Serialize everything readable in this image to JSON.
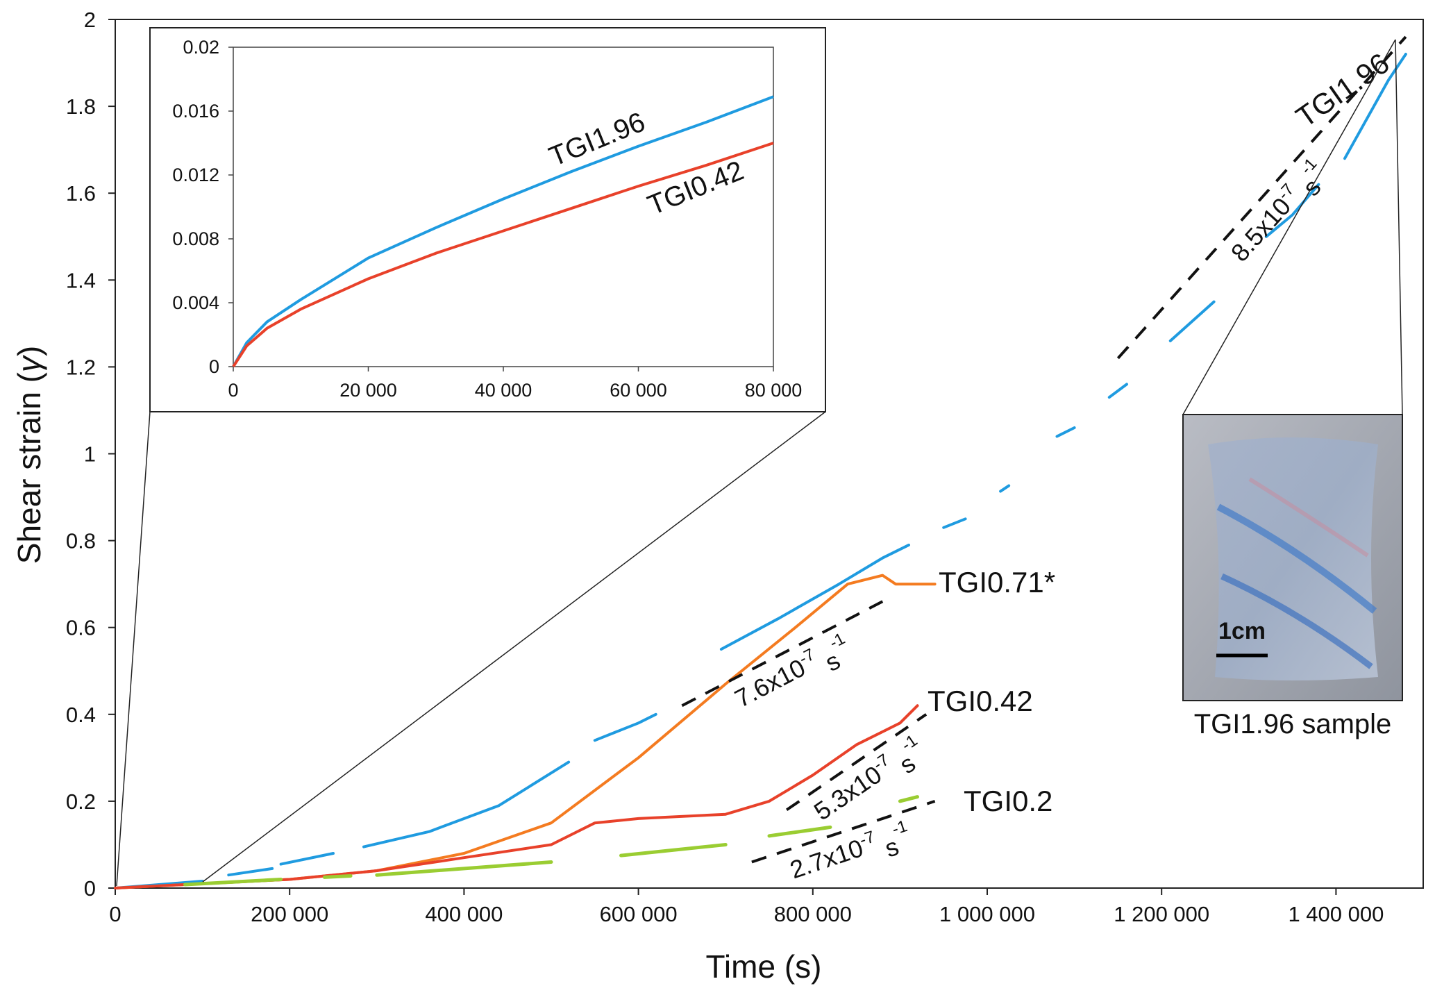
{
  "chart_data": [
    {
      "type": "line",
      "xlabel": "Time (s)",
      "ylabel_text": "Shear strain (",
      "ylabel_symbol": "γ",
      "ylabel_close": ")",
      "xlim": [
        0,
        1500000
      ],
      "ylim": [
        0,
        2
      ],
      "xticks": [
        0,
        200000,
        400000,
        600000,
        800000,
        1000000,
        1200000,
        1400000
      ],
      "xtick_labels": [
        "0",
        "200 000",
        "400 000",
        "600 000",
        "800 000",
        "1 000 000",
        "1 200 000",
        "1 400 000"
      ],
      "yticks": [
        0,
        0.2,
        0.4,
        0.6,
        0.8,
        1,
        1.2,
        1.4,
        1.6,
        1.8,
        2
      ],
      "ytick_labels": [
        "0",
        "0.2",
        "0.4",
        "0.6",
        "0.8",
        "1",
        "1.2",
        "1.4",
        "1.6",
        "1.8",
        "2"
      ],
      "grid": false,
      "series": [
        {
          "name": "TGI1.96",
          "color": "#1f9be0",
          "segments": [
            [
              [
                0,
                0
              ],
              [
                50000,
                0.008
              ],
              [
                100000,
                0.016
              ]
            ],
            [
              [
                130000,
                0.03
              ],
              [
                180000,
                0.045
              ]
            ],
            [
              [
                190000,
                0.055
              ],
              [
                250000,
                0.08
              ]
            ],
            [
              [
                285000,
                0.095
              ],
              [
                360000,
                0.13
              ],
              [
                440000,
                0.19
              ],
              [
                520000,
                0.29
              ]
            ],
            [
              [
                550000,
                0.34
              ],
              [
                600000,
                0.38
              ],
              [
                620000,
                0.4
              ]
            ],
            [
              [
                695000,
                0.55
              ],
              [
                760000,
                0.62
              ],
              [
                830000,
                0.7
              ],
              [
                880000,
                0.76
              ],
              [
                910000,
                0.79
              ]
            ],
            [
              [
                950000,
                0.83
              ],
              [
                975000,
                0.85
              ]
            ],
            [
              [
                1020000,
                0.92
              ]
            ],
            [
              [
                1080000,
                1.04
              ],
              [
                1100000,
                1.06
              ]
            ],
            [
              [
                1140000,
                1.13
              ],
              [
                1160000,
                1.16
              ]
            ],
            [
              [
                1210000,
                1.26
              ],
              [
                1260000,
                1.35
              ]
            ],
            [
              [
                1320000,
                1.5
              ],
              [
                1350000,
                1.55
              ],
              [
                1380000,
                1.62
              ]
            ],
            [
              [
                1410000,
                1.68
              ],
              [
                1460000,
                1.86
              ],
              [
                1480000,
                1.92
              ]
            ]
          ]
        },
        {
          "name": "TGI0.71*",
          "color": "#f47b20",
          "segments": [
            [
              [
                0,
                0
              ],
              [
                100000,
                0.01
              ],
              [
                200000,
                0.02
              ],
              [
                300000,
                0.04
              ],
              [
                400000,
                0.08
              ],
              [
                500000,
                0.15
              ],
              [
                600000,
                0.3
              ],
              [
                700000,
                0.47
              ],
              [
                780000,
                0.6
              ],
              [
                840000,
                0.7
              ],
              [
                880000,
                0.72
              ],
              [
                895000,
                0.7
              ],
              [
                940000,
                0.7
              ]
            ]
          ]
        },
        {
          "name": "TGI0.42",
          "color": "#e8412a",
          "segments": [
            [
              [
                0,
                0
              ],
              [
                100000,
                0.01
              ],
              [
                200000,
                0.02
              ],
              [
                300000,
                0.04
              ],
              [
                400000,
                0.07
              ],
              [
                500000,
                0.1
              ],
              [
                550000,
                0.15
              ],
              [
                600000,
                0.16
              ],
              [
                700000,
                0.17
              ],
              [
                750000,
                0.2
              ],
              [
                800000,
                0.26
              ],
              [
                850000,
                0.33
              ],
              [
                900000,
                0.38
              ],
              [
                920000,
                0.42
              ]
            ]
          ]
        },
        {
          "name": "TGI0.2",
          "color": "#9acd32",
          "segments": [
            [
              [
                80000,
                0.008
              ],
              [
                190000,
                0.02
              ]
            ],
            [
              [
                240000,
                0.025
              ],
              [
                270000,
                0.028
              ]
            ],
            [
              [
                300000,
                0.03
              ],
              [
                500000,
                0.06
              ]
            ],
            [
              [
                580000,
                0.075
              ],
              [
                700000,
                0.1
              ]
            ],
            [
              [
                750000,
                0.12
              ],
              [
                820000,
                0.14
              ]
            ],
            [
              [
                900000,
                0.2
              ],
              [
                920000,
                0.21
              ]
            ]
          ]
        }
      ],
      "fit_lines": [
        {
          "label_base": "8.5",
          "label_mid": "x10",
          "label_exp": "-7",
          "label_unit": " s",
          "label_unit_exp": "-1",
          "x": [
            1150000,
            1480000
          ],
          "y": [
            1.22,
            1.96
          ]
        },
        {
          "label_base": "7.6",
          "label_mid": "x10",
          "label_exp": "-7",
          "label_unit": " s",
          "label_unit_exp": "-1",
          "x": [
            650000,
            880000
          ],
          "y": [
            0.42,
            0.66
          ]
        },
        {
          "label_base": "5.3",
          "label_mid": "x10",
          "label_exp": "-7",
          "label_unit": " s",
          "label_unit_exp": "-1",
          "x": [
            770000,
            930000
          ],
          "y": [
            0.18,
            0.4
          ]
        },
        {
          "label_base": "2.7",
          "label_mid": "x10",
          "label_exp": "-7",
          "label_unit": " s",
          "label_unit_exp": "-1",
          "x": [
            730000,
            940000
          ],
          "y": [
            0.06,
            0.2
          ]
        }
      ],
      "annotations": [
        "TGI1.96",
        "TGI0.71*",
        "TGI0.42",
        "TGI0.2"
      ]
    },
    {
      "type": "line",
      "xlim": [
        0,
        80000
      ],
      "ylim": [
        0,
        0.02
      ],
      "xticks": [
        0,
        20000,
        40000,
        60000,
        80000
      ],
      "xtick_labels": [
        "0",
        "20 000",
        "40 000",
        "60 000",
        "80 000"
      ],
      "yticks": [
        0,
        0.004,
        0.008,
        0.012,
        0.016,
        0.02
      ],
      "ytick_labels": [
        "0",
        "0.004",
        "0.008",
        "0.012",
        "0.016",
        "0.02"
      ],
      "grid": false,
      "series": [
        {
          "name": "TGI1.96",
          "color": "#1f9be0",
          "x": [
            0,
            2000,
            5000,
            10000,
            20000,
            30000,
            40000,
            50000,
            60000,
            70000,
            80000
          ],
          "y": [
            0,
            0.0015,
            0.0028,
            0.0042,
            0.0068,
            0.0087,
            0.0105,
            0.0122,
            0.0138,
            0.0153,
            0.0169
          ]
        },
        {
          "name": "TGI0.42",
          "color": "#e8412a",
          "x": [
            0,
            2000,
            5000,
            10000,
            20000,
            30000,
            40000,
            50000,
            60000,
            70000,
            80000
          ],
          "y": [
            0,
            0.0013,
            0.0024,
            0.0036,
            0.0055,
            0.0071,
            0.0085,
            0.0099,
            0.0113,
            0.0126,
            0.014
          ]
        }
      ]
    }
  ],
  "photo": {
    "caption": "TGI1.96 sample",
    "scale_label": "1cm"
  }
}
